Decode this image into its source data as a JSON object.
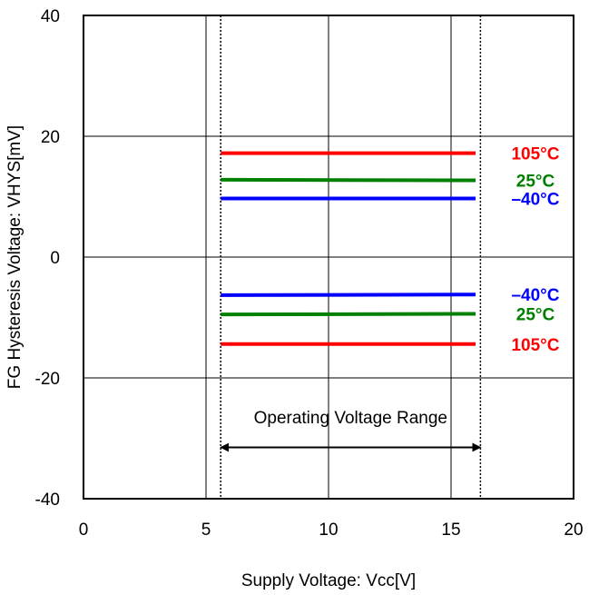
{
  "chart_data": {
    "type": "line",
    "title": "",
    "xlabel": "Supply Voltage: Vcc[V]",
    "ylabel": "FG Hysteresis Voltage: VHYS[mV]",
    "xlim": [
      0,
      20
    ],
    "ylim": [
      -40,
      40
    ],
    "x_ticks": [
      0,
      5,
      10,
      15,
      20
    ],
    "y_ticks": [
      40,
      20,
      0,
      -20,
      -40
    ],
    "x_tick_labels": [
      "0",
      "5",
      "10",
      "15",
      "20"
    ],
    "y_tick_labels": [
      "40",
      "20",
      "0",
      "-20",
      "-40"
    ],
    "grid": true,
    "operating_range": {
      "label": "Operating Voltage Range",
      "x": [
        5.6,
        16.2
      ]
    },
    "series": [
      {
        "name": "105°C",
        "color": "#ff0000",
        "x": [
          5.6,
          16.0
        ],
        "y": [
          17.2,
          17.2
        ]
      },
      {
        "name": "25°C",
        "color": "#008000",
        "x": [
          5.6,
          16.0
        ],
        "y": [
          12.8,
          12.7
        ]
      },
      {
        "name": "–40°C",
        "color": "#0000ff",
        "x": [
          5.6,
          16.0
        ],
        "y": [
          9.7,
          9.7
        ]
      },
      {
        "name": "–40°C",
        "color": "#0000ff",
        "x": [
          5.6,
          16.0
        ],
        "y": [
          -6.3,
          -6.2
        ]
      },
      {
        "name": "25°C",
        "color": "#008000",
        "x": [
          5.6,
          16.0
        ],
        "y": [
          -9.5,
          -9.4
        ]
      },
      {
        "name": "105°C",
        "color": "#ff0000",
        "x": [
          5.6,
          16.0
        ],
        "y": [
          -14.4,
          -14.4
        ]
      }
    ]
  }
}
